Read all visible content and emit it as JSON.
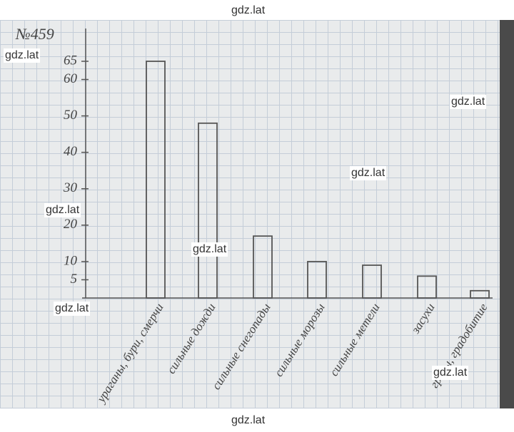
{
  "chart_data": {
    "type": "bar",
    "title": "№459",
    "categories": [
      "ураганы, бури, смерчи",
      "сильные дожди",
      "сильные снегопады",
      "сильные морозы",
      "сильные метели",
      "засухи",
      "грозы, градобитие"
    ],
    "values": [
      65,
      48,
      17,
      10,
      9,
      6,
      2
    ],
    "color": "#555555",
    "ylim": [
      0,
      74
    ],
    "yticks": [
      5,
      10,
      20,
      30,
      40,
      50,
      60,
      65
    ]
  },
  "watermarks": [
    "gdz.lat",
    "gdz.lat",
    "gdz.lat",
    "gdz.lat",
    "gdz.lat",
    "gdz.lat",
    "gdz.lat",
    "gdz.lat",
    "gdz.lat"
  ]
}
